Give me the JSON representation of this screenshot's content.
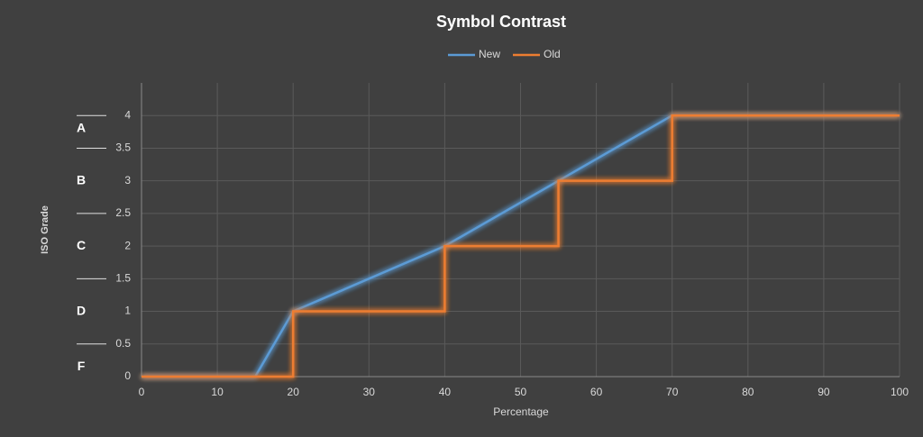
{
  "chart_data": {
    "type": "line",
    "title": "Symbol Contrast",
    "x_label": "Percentage",
    "y_label": "ISO Grade",
    "series": [
      {
        "name": "New",
        "color": "#5b9bd5",
        "x": [
          0,
          15,
          20,
          40,
          55,
          70,
          100
        ],
        "values": [
          0,
          0,
          1,
          2,
          3,
          4,
          4
        ]
      },
      {
        "name": "Old",
        "color": "#ed7d31",
        "x": [
          0,
          20,
          20,
          40,
          40,
          55,
          55,
          70,
          70,
          100
        ],
        "values": [
          0,
          0,
          1,
          1,
          2,
          2,
          3,
          3,
          4,
          4
        ]
      }
    ],
    "xlim": [
      0,
      100
    ],
    "xticks": [
      0,
      10,
      20,
      30,
      40,
      50,
      60,
      70,
      80,
      90,
      100
    ],
    "ylim": [
      0,
      4.5
    ],
    "yticks": [
      0,
      0.5,
      1,
      1.5,
      2,
      2.5,
      3,
      3.5,
      4
    ],
    "grid": true,
    "grade_labels": [
      {
        "label": "A",
        "value": 3.8
      },
      {
        "label": "B",
        "value": 3
      },
      {
        "label": "C",
        "value": 2
      },
      {
        "label": "D",
        "value": 1
      },
      {
        "label": "F",
        "value": 0.15
      }
    ],
    "grade_boundaries": [
      0.5,
      1.5,
      2.5,
      3.5,
      4
    ]
  }
}
